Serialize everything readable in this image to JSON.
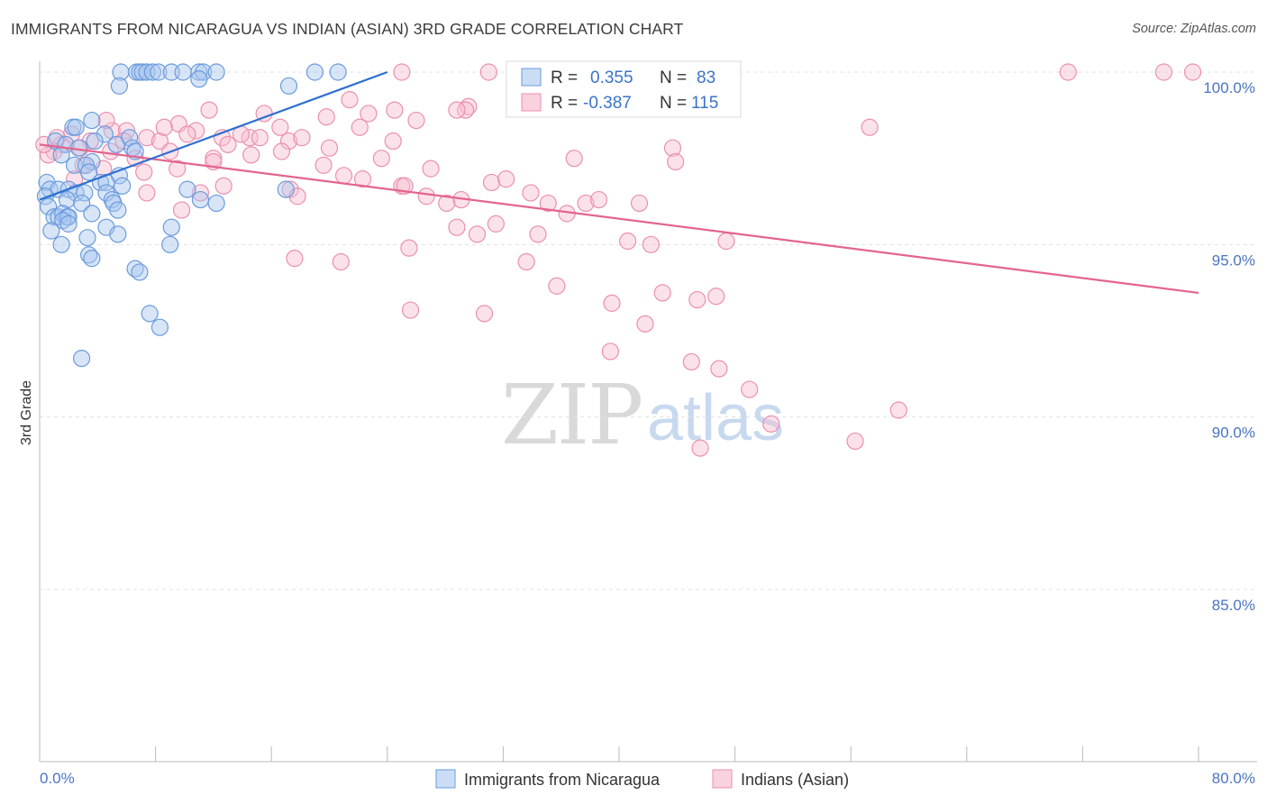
{
  "title": "IMMIGRANTS FROM NICARAGUA VS INDIAN (ASIAN) 3RD GRADE CORRELATION CHART",
  "source": "Source: ZipAtlas.com",
  "watermark": {
    "zip": "ZIP",
    "atlas": "atlas"
  },
  "stats": {
    "r_label": "R =",
    "n_label": "N =",
    "blue": {
      "r": "0.355",
      "n": "83"
    },
    "pink": {
      "r": "-0.387",
      "n": "115"
    }
  },
  "legend": {
    "blue": "Immigrants from Nicaragua",
    "pink": "Indians (Asian)"
  },
  "colors": {
    "blue_fill": "#a9c6ee",
    "blue_stroke": "#6a9bdc",
    "blue_line": "#2e6fd0",
    "pink_fill": "#f6bfd0",
    "pink_stroke": "#eb8fae",
    "pink_line": "#e3648f",
    "grid": "#e0e0e0",
    "tick_text": "#4a74c4"
  },
  "chart_data": {
    "type": "scatter",
    "title": "IMMIGRANTS FROM NICARAGUA VS INDIAN (ASIAN) 3RD GRADE CORRELATION CHART",
    "xlabel": "",
    "ylabel": "3rd Grade",
    "xlim": [
      0,
      80
    ],
    "ylim": [
      80.5,
      100.8
    ],
    "x_tick_labels": [
      "0.0%",
      "80.0%"
    ],
    "y_ticks": [
      100,
      95,
      90,
      85
    ],
    "y_tick_labels": [
      "100.0%",
      "95.0%",
      "90.0%",
      "85.0%"
    ],
    "grid": true,
    "series": [
      {
        "name": "Immigrants from Nicaragua",
        "color": "blue",
        "trend": {
          "x": [
            0,
            24
          ],
          "y": [
            96.3,
            100
          ]
        },
        "points": [
          [
            5.6,
            100
          ],
          [
            6.7,
            100
          ],
          [
            6.9,
            100
          ],
          [
            7.1,
            100
          ],
          [
            7.4,
            100
          ],
          [
            7.8,
            100
          ],
          [
            8.2,
            100
          ],
          [
            9.1,
            100
          ],
          [
            9.9,
            100
          ],
          [
            11.0,
            100
          ],
          [
            11.3,
            100
          ],
          [
            12.2,
            100
          ],
          [
            19.0,
            100
          ],
          [
            20.6,
            100
          ],
          [
            5.5,
            99.6
          ],
          [
            11.0,
            99.8
          ],
          [
            17.2,
            99.6
          ],
          [
            3.6,
            98.6
          ],
          [
            2.3,
            98.4
          ],
          [
            2.5,
            98.4
          ],
          [
            4.5,
            98.2
          ],
          [
            6.2,
            98.1
          ],
          [
            1.1,
            98.0
          ],
          [
            3.8,
            98.0
          ],
          [
            1.8,
            97.9
          ],
          [
            2.7,
            97.8
          ],
          [
            5.3,
            97.9
          ],
          [
            6.4,
            97.8
          ],
          [
            6.6,
            97.7
          ],
          [
            1.5,
            97.6
          ],
          [
            3.6,
            97.4
          ],
          [
            2.4,
            97.3
          ],
          [
            3.2,
            97.3
          ],
          [
            3.4,
            97.1
          ],
          [
            5.5,
            97.0
          ],
          [
            0.5,
            96.8
          ],
          [
            0.7,
            96.6
          ],
          [
            1.3,
            96.6
          ],
          [
            2.0,
            96.6
          ],
          [
            4.2,
            96.8
          ],
          [
            4.6,
            96.8
          ],
          [
            5.7,
            96.7
          ],
          [
            2.5,
            96.5
          ],
          [
            3.1,
            96.5
          ],
          [
            0.4,
            96.4
          ],
          [
            1.9,
            96.3
          ],
          [
            4.6,
            96.5
          ],
          [
            5.0,
            96.3
          ],
          [
            5.1,
            96.2
          ],
          [
            0.6,
            96.1
          ],
          [
            2.9,
            96.2
          ],
          [
            10.2,
            96.6
          ],
          [
            11.1,
            96.3
          ],
          [
            12.2,
            96.2
          ],
          [
            17.0,
            96.6
          ],
          [
            1.0,
            95.8
          ],
          [
            1.3,
            95.8
          ],
          [
            1.6,
            95.9
          ],
          [
            1.9,
            95.8
          ],
          [
            2.0,
            95.8
          ],
          [
            3.6,
            95.9
          ],
          [
            5.4,
            96.0
          ],
          [
            1.6,
            95.7
          ],
          [
            2.0,
            95.6
          ],
          [
            0.8,
            95.4
          ],
          [
            4.6,
            95.5
          ],
          [
            5.4,
            95.3
          ],
          [
            3.3,
            95.2
          ],
          [
            9.1,
            95.5
          ],
          [
            1.5,
            95.0
          ],
          [
            9.0,
            95.0
          ],
          [
            3.4,
            94.7
          ],
          [
            3.6,
            94.6
          ],
          [
            6.6,
            94.3
          ],
          [
            6.9,
            94.2
          ],
          [
            7.6,
            93.0
          ],
          [
            8.3,
            92.6
          ],
          [
            2.9,
            91.7
          ]
        ]
      },
      {
        "name": "Indians (Asian)",
        "color": "pink",
        "trend": {
          "x": [
            0,
            80
          ],
          "y": [
            97.9,
            93.6
          ]
        },
        "points": [
          [
            25.0,
            100
          ],
          [
            31.0,
            100
          ],
          [
            71.0,
            100
          ],
          [
            77.6,
            100
          ],
          [
            79.6,
            100
          ],
          [
            21.4,
            99.2
          ],
          [
            29.6,
            99.0
          ],
          [
            29.4,
            98.9
          ],
          [
            11.7,
            98.9
          ],
          [
            15.5,
            98.8
          ],
          [
            24.5,
            98.9
          ],
          [
            22.7,
            98.8
          ],
          [
            26.0,
            98.6
          ],
          [
            19.8,
            98.7
          ],
          [
            28.8,
            98.9
          ],
          [
            9.6,
            98.5
          ],
          [
            16.6,
            98.4
          ],
          [
            10.8,
            98.3
          ],
          [
            12.6,
            98.1
          ],
          [
            14.5,
            98.1
          ],
          [
            57.3,
            98.4
          ],
          [
            22.1,
            98.4
          ],
          [
            5.0,
            98.3
          ],
          [
            6.0,
            98.3
          ],
          [
            7.4,
            98.1
          ],
          [
            3.5,
            98.0
          ],
          [
            5.8,
            98.0
          ],
          [
            8.3,
            98.0
          ],
          [
            13.0,
            97.9
          ],
          [
            15.2,
            98.1
          ],
          [
            17.2,
            98.0
          ],
          [
            1.5,
            97.9
          ],
          [
            2.8,
            97.8
          ],
          [
            1.0,
            97.7
          ],
          [
            0.6,
            97.6
          ],
          [
            4.9,
            97.7
          ],
          [
            6.6,
            97.5
          ],
          [
            9.0,
            97.7
          ],
          [
            12.0,
            97.5
          ],
          [
            14.6,
            97.6
          ],
          [
            16.7,
            97.7
          ],
          [
            20.0,
            97.8
          ],
          [
            24.4,
            98.0
          ],
          [
            43.7,
            97.8
          ],
          [
            3.0,
            97.3
          ],
          [
            4.4,
            97.2
          ],
          [
            7.2,
            97.1
          ],
          [
            9.5,
            97.2
          ],
          [
            12.0,
            97.4
          ],
          [
            19.6,
            97.3
          ],
          [
            21.0,
            97.0
          ],
          [
            22.3,
            96.9
          ],
          [
            31.2,
            96.8
          ],
          [
            43.9,
            97.4
          ],
          [
            36.9,
            97.5
          ],
          [
            25.0,
            96.7
          ],
          [
            17.3,
            96.6
          ],
          [
            17.8,
            96.4
          ],
          [
            11.1,
            96.5
          ],
          [
            7.4,
            96.5
          ],
          [
            12.7,
            96.7
          ],
          [
            25.2,
            96.7
          ],
          [
            26.7,
            96.4
          ],
          [
            29.1,
            96.3
          ],
          [
            28.1,
            96.2
          ],
          [
            35.1,
            96.2
          ],
          [
            37.7,
            96.2
          ],
          [
            38.6,
            96.3
          ],
          [
            41.4,
            96.2
          ],
          [
            31.5,
            95.6
          ],
          [
            28.8,
            95.5
          ],
          [
            30.2,
            95.3
          ],
          [
            34.4,
            95.3
          ],
          [
            40.6,
            95.1
          ],
          [
            47.4,
            95.1
          ],
          [
            25.5,
            94.9
          ],
          [
            17.6,
            94.6
          ],
          [
            20.8,
            94.5
          ],
          [
            33.6,
            94.5
          ],
          [
            42.2,
            95.0
          ],
          [
            35.7,
            93.8
          ],
          [
            43.0,
            93.6
          ],
          [
            39.5,
            93.3
          ],
          [
            45.4,
            93.4
          ],
          [
            46.7,
            93.5
          ],
          [
            25.6,
            93.1
          ],
          [
            30.7,
            93.0
          ],
          [
            41.8,
            92.7
          ],
          [
            39.4,
            91.9
          ],
          [
            45.0,
            91.6
          ],
          [
            46.9,
            91.4
          ],
          [
            49.0,
            90.8
          ],
          [
            59.3,
            90.2
          ],
          [
            50.5,
            89.8
          ],
          [
            56.3,
            89.3
          ],
          [
            45.6,
            89.1
          ],
          [
            2.2,
            98.2
          ],
          [
            4.6,
            98.6
          ],
          [
            8.6,
            98.4
          ],
          [
            10.2,
            98.2
          ],
          [
            13.9,
            98.2
          ],
          [
            18.1,
            98.1
          ],
          [
            23.6,
            97.5
          ],
          [
            27.0,
            97.2
          ],
          [
            32.2,
            96.9
          ],
          [
            33.9,
            96.5
          ],
          [
            36.4,
            95.9
          ],
          [
            0.3,
            97.9
          ],
          [
            1.2,
            98.1
          ],
          [
            2.4,
            96.9
          ],
          [
            9.8,
            96.0
          ]
        ]
      }
    ]
  }
}
